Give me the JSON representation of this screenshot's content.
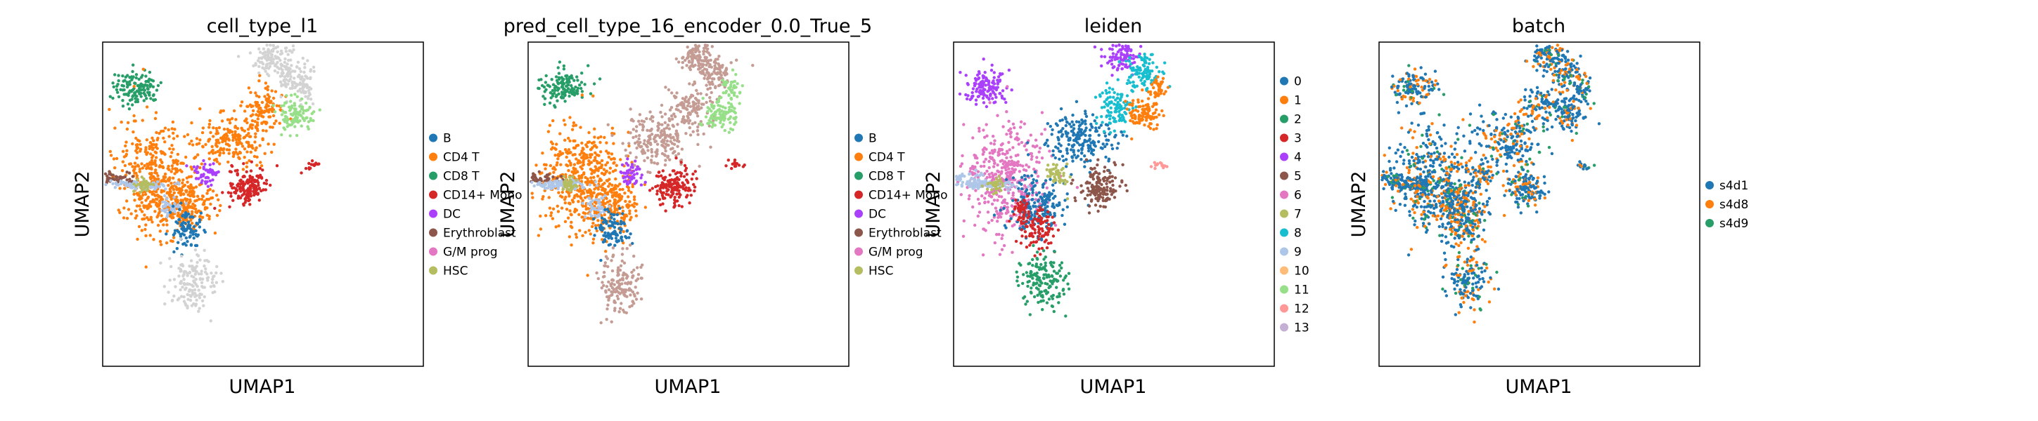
{
  "figure": {
    "type": "umap-scatter-grid"
  },
  "palettes": {
    "cell_type": [
      "#1f77b4",
      "#ff7f0e",
      "#279e68",
      "#d62728",
      "#aa40fc",
      "#8c564b",
      "#e377c2",
      "#b5bd61",
      "#17becf",
      "#aec7e8",
      "#ffbb78",
      "#98df8a",
      "#ff9896",
      "#c5b0d5"
    ],
    "leiden": [
      "#1f77b4",
      "#ff7f0e",
      "#279e68",
      "#d62728",
      "#aa40fc",
      "#8c564b",
      "#e377c2",
      "#b5bd61",
      "#17becf",
      "#aec7e8",
      "#ffbb78",
      "#98df8a",
      "#ff9896",
      "#c5b0d5"
    ],
    "batch": [
      "#1f77b4",
      "#ff7f0e",
      "#279e68"
    ],
    "unlabeled": "#d3d3d3"
  },
  "chart_data": [
    {
      "type": "scatter",
      "title": "cell_type_l1",
      "xlabel": "UMAP1",
      "ylabel": "UMAP2",
      "grid": false,
      "legend_position": "right",
      "legend": [
        "B",
        "CD4 T",
        "CD8 T",
        "CD14+ Mono",
        "DC",
        "Erythroblast",
        "G/M prog",
        "HSC"
      ],
      "colors": [
        "#1f77b4",
        "#ff7f0e",
        "#279e68",
        "#d62728",
        "#aa40fc",
        "#8c564b",
        "#e377c2",
        "#b5bd61"
      ]
    },
    {
      "type": "scatter",
      "title": "pred_cell_type_16_encoder_0.0_True_5",
      "xlabel": "UMAP1",
      "ylabel": "UMAP2",
      "grid": false,
      "legend_position": "right",
      "legend": [
        "B",
        "CD4 T",
        "CD8 T",
        "CD14+ Mono",
        "DC",
        "Erythroblast",
        "G/M prog",
        "HSC"
      ],
      "colors": [
        "#1f77b4",
        "#ff7f0e",
        "#279e68",
        "#d62728",
        "#aa40fc",
        "#8c564b",
        "#e377c2",
        "#b5bd61"
      ]
    },
    {
      "type": "scatter",
      "title": "leiden",
      "xlabel": "UMAP1",
      "ylabel": "UMAP2",
      "grid": false,
      "legend_position": "right",
      "legend": [
        "0",
        "1",
        "2",
        "3",
        "4",
        "5",
        "6",
        "7",
        "8",
        "9",
        "10",
        "11",
        "12",
        "13"
      ],
      "colors": [
        "#1f77b4",
        "#ff7f0e",
        "#279e68",
        "#d62728",
        "#aa40fc",
        "#8c564b",
        "#e377c2",
        "#b5bd61",
        "#17becf",
        "#aec7e8",
        "#ffbb78",
        "#98df8a",
        "#ff9896",
        "#c5b0d5"
      ]
    },
    {
      "type": "scatter",
      "title": "batch",
      "xlabel": "UMAP1",
      "ylabel": "UMAP2",
      "grid": false,
      "legend_position": "right",
      "legend": [
        "s4d1",
        "s4d8",
        "s4d9"
      ],
      "colors": [
        "#1f77b4",
        "#ff7f0e",
        "#279e68"
      ]
    }
  ]
}
